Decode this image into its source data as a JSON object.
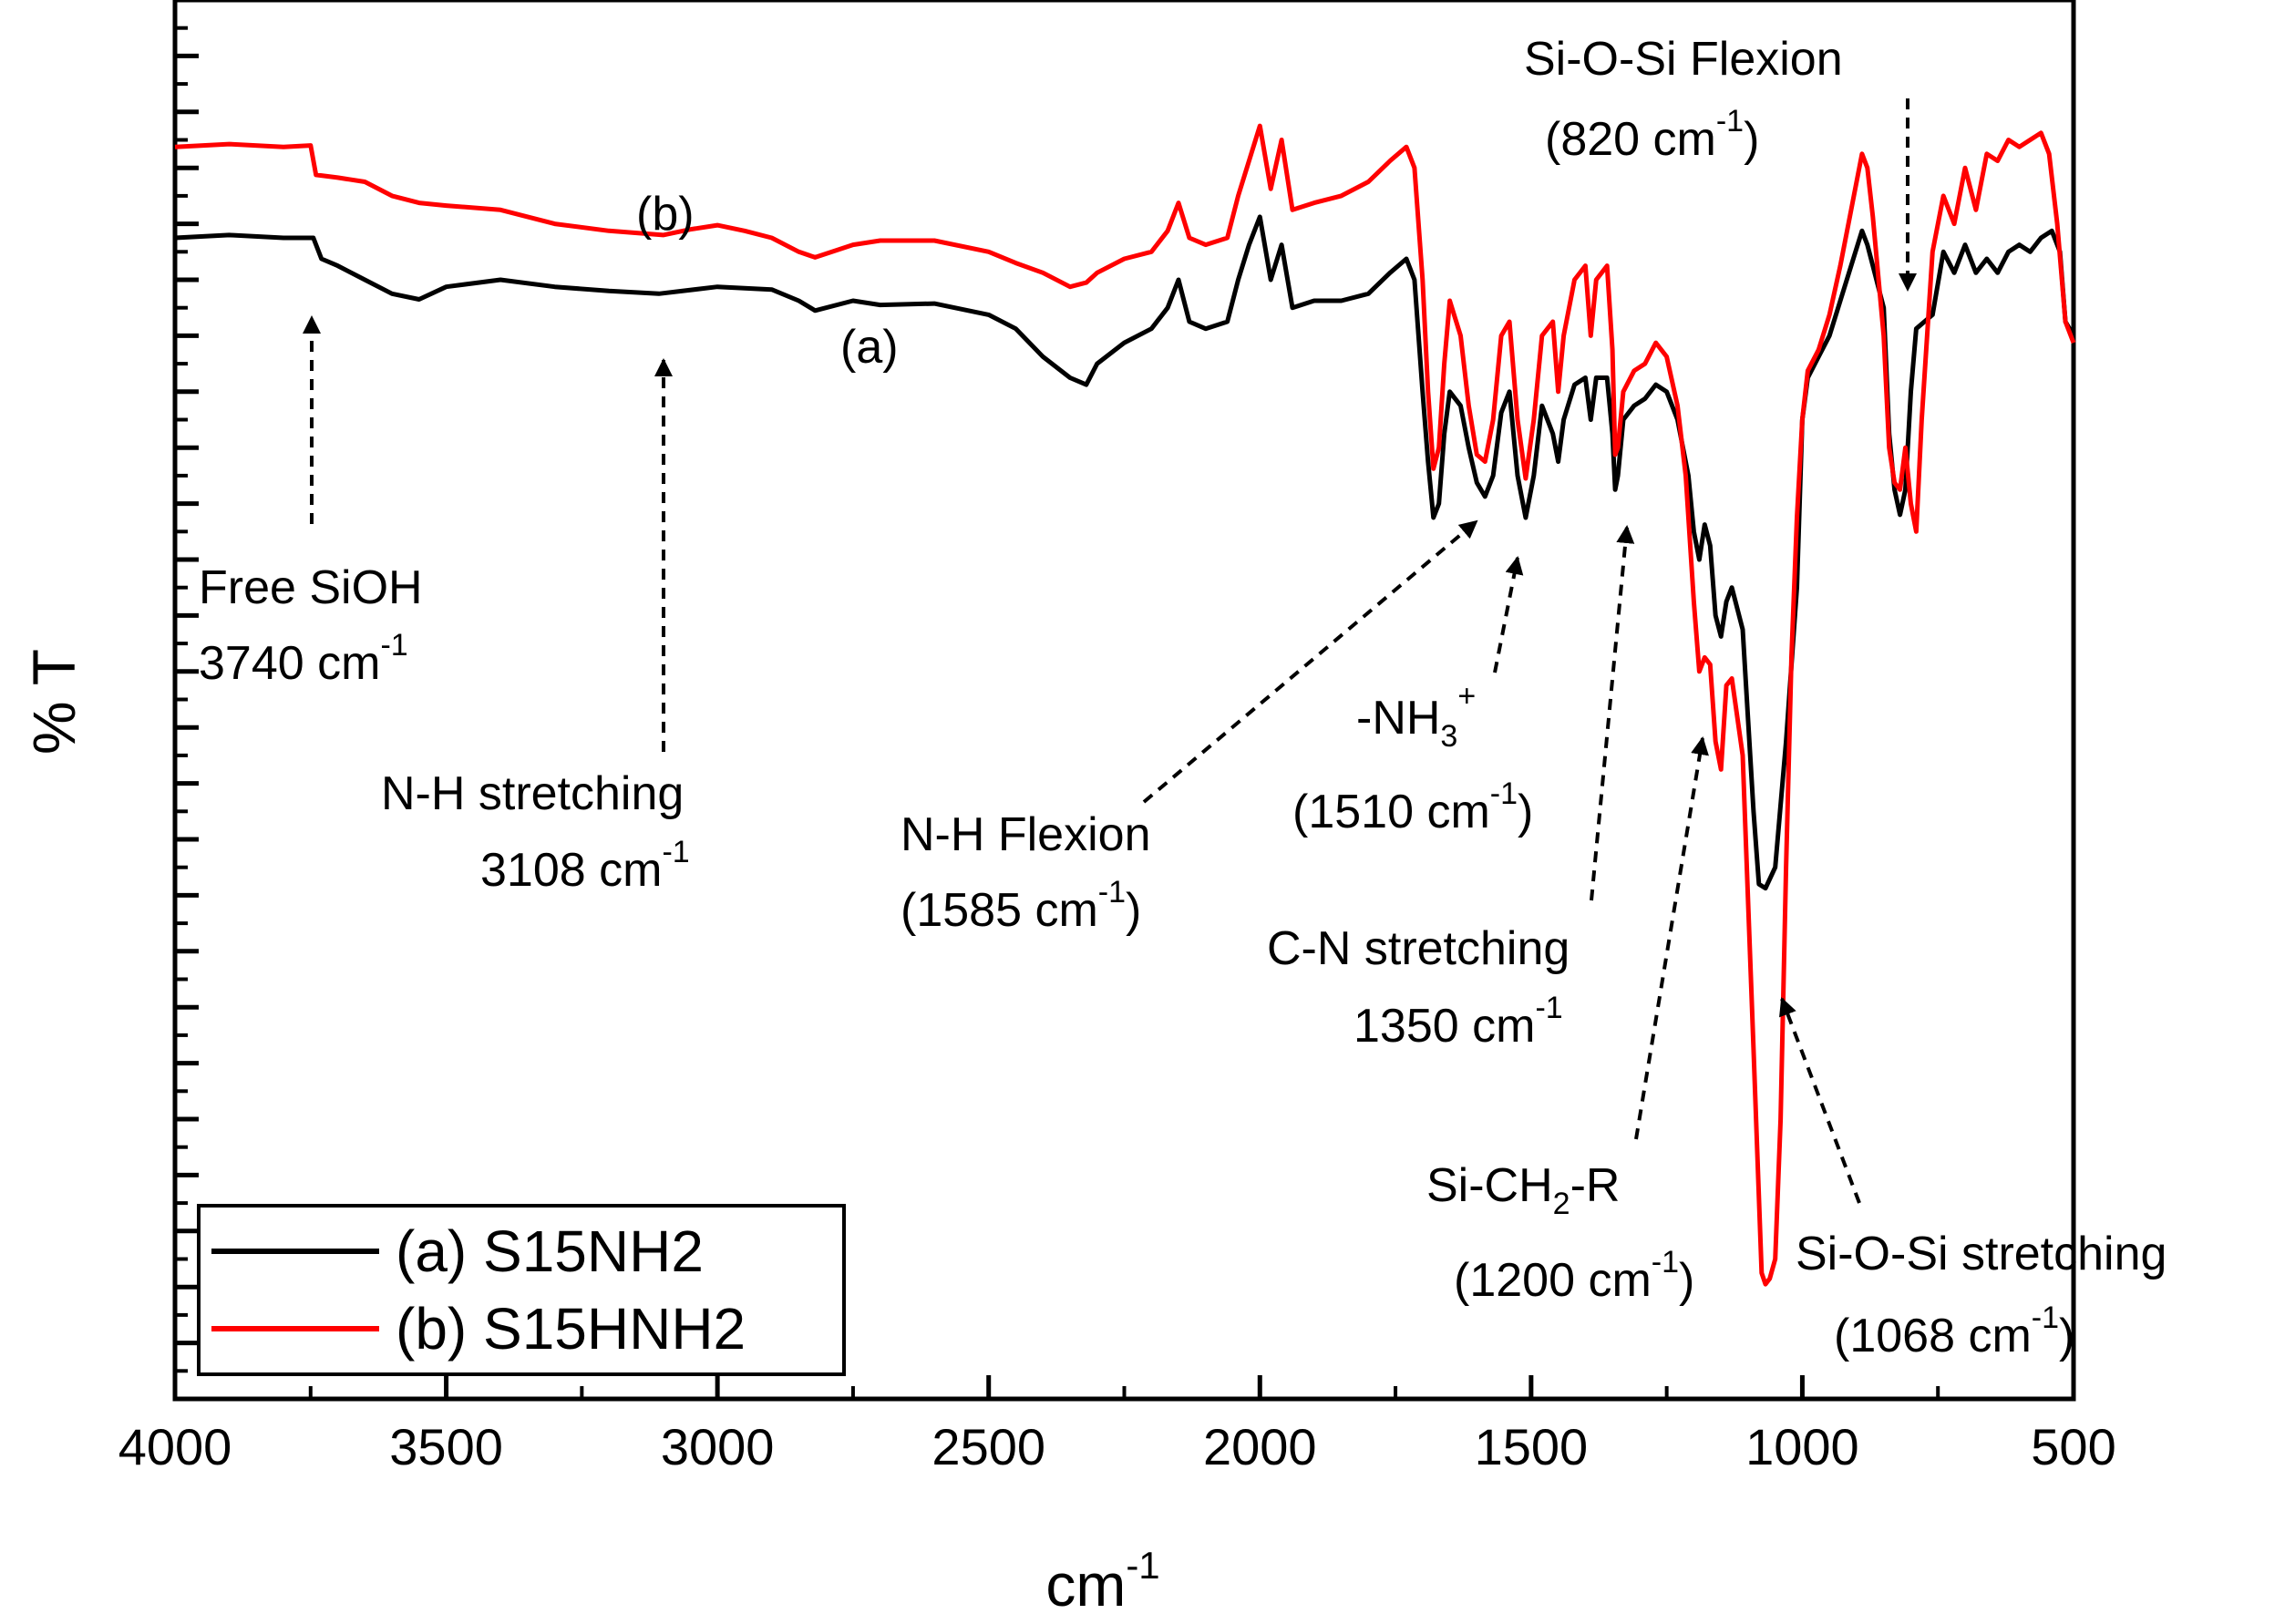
{
  "chart_data": {
    "type": "line",
    "title": "",
    "xlabel": "cm",
    "xlabel_sup": "-1",
    "ylabel": "% T",
    "xlim": [
      4000,
      500
    ],
    "ylim": [
      0,
      100
    ],
    "xticks": [
      "4000",
      "3500",
      "3000",
      "2500",
      "2000",
      "1500",
      "1000",
      "500"
    ],
    "xtick_values": [
      4000,
      3500,
      3000,
      2500,
      2000,
      1500,
      1000,
      500
    ],
    "series": [
      {
        "name": "(a) S15NH2",
        "curve_label": "(a)",
        "color": "#000000",
        "points": [
          [
            4000,
            83
          ],
          [
            3900,
            83.2
          ],
          [
            3800,
            83
          ],
          [
            3745,
            83
          ],
          [
            3730,
            81.5
          ],
          [
            3700,
            81
          ],
          [
            3650,
            80
          ],
          [
            3600,
            79
          ],
          [
            3550,
            78.6
          ],
          [
            3500,
            79.5
          ],
          [
            3400,
            80
          ],
          [
            3300,
            79.5
          ],
          [
            3200,
            79.2
          ],
          [
            3108,
            79
          ],
          [
            3000,
            79.5
          ],
          [
            2900,
            79.3
          ],
          [
            2850,
            78.5
          ],
          [
            2820,
            77.8
          ],
          [
            2750,
            78.5
          ],
          [
            2700,
            78.2
          ],
          [
            2600,
            78.3
          ],
          [
            2500,
            77.5
          ],
          [
            2450,
            76.5
          ],
          [
            2400,
            74.5
          ],
          [
            2350,
            73
          ],
          [
            2320,
            72.5
          ],
          [
            2300,
            74
          ],
          [
            2250,
            75.5
          ],
          [
            2200,
            76.5
          ],
          [
            2170,
            78
          ],
          [
            2150,
            80
          ],
          [
            2130,
            77
          ],
          [
            2100,
            76.5
          ],
          [
            2060,
            77
          ],
          [
            2040,
            80
          ],
          [
            2020,
            82.5
          ],
          [
            2000,
            84.5
          ],
          [
            1980,
            80
          ],
          [
            1960,
            82.5
          ],
          [
            1940,
            78
          ],
          [
            1900,
            78.5
          ],
          [
            1850,
            78.5
          ],
          [
            1800,
            79
          ],
          [
            1760,
            80.5
          ],
          [
            1730,
            81.5
          ],
          [
            1715,
            80
          ],
          [
            1700,
            72
          ],
          [
            1690,
            67
          ],
          [
            1680,
            63
          ],
          [
            1670,
            64
          ],
          [
            1660,
            69
          ],
          [
            1650,
            72
          ],
          [
            1630,
            71
          ],
          [
            1615,
            68
          ],
          [
            1600,
            65.5
          ],
          [
            1585,
            64.5
          ],
          [
            1570,
            66
          ],
          [
            1555,
            70.5
          ],
          [
            1540,
            72
          ],
          [
            1525,
            66
          ],
          [
            1510,
            63
          ],
          [
            1495,
            66
          ],
          [
            1480,
            71
          ],
          [
            1460,
            69
          ],
          [
            1450,
            67
          ],
          [
            1440,
            70
          ],
          [
            1420,
            72.5
          ],
          [
            1400,
            73
          ],
          [
            1390,
            70
          ],
          [
            1380,
            73
          ],
          [
            1360,
            73
          ],
          [
            1350,
            69
          ],
          [
            1345,
            65
          ],
          [
            1340,
            66
          ],
          [
            1330,
            70
          ],
          [
            1310,
            71
          ],
          [
            1290,
            71.5
          ],
          [
            1270,
            72.5
          ],
          [
            1250,
            72
          ],
          [
            1230,
            70
          ],
          [
            1210,
            66
          ],
          [
            1200,
            62
          ],
          [
            1190,
            60
          ],
          [
            1180,
            62.5
          ],
          [
            1170,
            61
          ],
          [
            1160,
            56
          ],
          [
            1150,
            54.5
          ],
          [
            1140,
            57
          ],
          [
            1130,
            58
          ],
          [
            1110,
            55
          ],
          [
            1090,
            42
          ],
          [
            1080,
            36.8
          ],
          [
            1068,
            36.5
          ],
          [
            1050,
            38
          ],
          [
            1030,
            47
          ],
          [
            1010,
            58
          ],
          [
            1000,
            70
          ],
          [
            990,
            73
          ],
          [
            970,
            74.5
          ],
          [
            950,
            76
          ],
          [
            930,
            78.5
          ],
          [
            910,
            81
          ],
          [
            890,
            83.5
          ],
          [
            880,
            82.5
          ],
          [
            870,
            81
          ],
          [
            850,
            78
          ],
          [
            840,
            69
          ],
          [
            830,
            65
          ],
          [
            820,
            63.2
          ],
          [
            810,
            65
          ],
          [
            800,
            72
          ],
          [
            790,
            76.5
          ],
          [
            760,
            77.5
          ],
          [
            740,
            82
          ],
          [
            720,
            80.5
          ],
          [
            700,
            82.5
          ],
          [
            680,
            80.5
          ],
          [
            660,
            81.5
          ],
          [
            640,
            80.5
          ],
          [
            620,
            82
          ],
          [
            600,
            82.5
          ],
          [
            580,
            82
          ],
          [
            560,
            83
          ],
          [
            540,
            83.5
          ],
          [
            525,
            82
          ],
          [
            515,
            77
          ],
          [
            500,
            76
          ]
        ]
      },
      {
        "name": "(b) S15HNH2",
        "curve_label": "(b)",
        "color": "#ff0000",
        "points": [
          [
            4000,
            89.5
          ],
          [
            3900,
            89.7
          ],
          [
            3800,
            89.5
          ],
          [
            3750,
            89.6
          ],
          [
            3740,
            87.5
          ],
          [
            3700,
            87.3
          ],
          [
            3650,
            87
          ],
          [
            3600,
            86
          ],
          [
            3550,
            85.5
          ],
          [
            3500,
            85.3
          ],
          [
            3400,
            85
          ],
          [
            3300,
            84
          ],
          [
            3200,
            83.5
          ],
          [
            3100,
            83.2
          ],
          [
            3050,
            83.6
          ],
          [
            3000,
            83.9
          ],
          [
            2950,
            83.5
          ],
          [
            2900,
            83
          ],
          [
            2850,
            82
          ],
          [
            2820,
            81.6
          ],
          [
            2750,
            82.5
          ],
          [
            2700,
            82.8
          ],
          [
            2600,
            82.8
          ],
          [
            2500,
            82
          ],
          [
            2450,
            81.2
          ],
          [
            2400,
            80.5
          ],
          [
            2350,
            79.5
          ],
          [
            2320,
            79.8
          ],
          [
            2300,
            80.5
          ],
          [
            2250,
            81.5
          ],
          [
            2200,
            82
          ],
          [
            2170,
            83.5
          ],
          [
            2150,
            85.5
          ],
          [
            2130,
            83
          ],
          [
            2100,
            82.5
          ],
          [
            2060,
            83
          ],
          [
            2040,
            86
          ],
          [
            2020,
            88.5
          ],
          [
            2000,
            91
          ],
          [
            1980,
            86.5
          ],
          [
            1960,
            90
          ],
          [
            1940,
            85
          ],
          [
            1900,
            85.5
          ],
          [
            1850,
            86
          ],
          [
            1800,
            87
          ],
          [
            1760,
            88.5
          ],
          [
            1730,
            89.5
          ],
          [
            1715,
            88
          ],
          [
            1700,
            80
          ],
          [
            1690,
            72
          ],
          [
            1680,
            66.5
          ],
          [
            1670,
            68
          ],
          [
            1660,
            74
          ],
          [
            1650,
            78.5
          ],
          [
            1630,
            76
          ],
          [
            1615,
            71
          ],
          [
            1600,
            67.5
          ],
          [
            1585,
            67
          ],
          [
            1570,
            70
          ],
          [
            1555,
            76
          ],
          [
            1540,
            77
          ],
          [
            1525,
            70
          ],
          [
            1510,
            65.8
          ],
          [
            1495,
            70
          ],
          [
            1480,
            76
          ],
          [
            1460,
            77
          ],
          [
            1450,
            72
          ],
          [
            1440,
            76
          ],
          [
            1420,
            80
          ],
          [
            1400,
            81
          ],
          [
            1390,
            76
          ],
          [
            1380,
            80
          ],
          [
            1360,
            81
          ],
          [
            1350,
            75
          ],
          [
            1345,
            67.5
          ],
          [
            1340,
            68
          ],
          [
            1330,
            72
          ],
          [
            1310,
            73.5
          ],
          [
            1290,
            74
          ],
          [
            1270,
            75.5
          ],
          [
            1250,
            74.5
          ],
          [
            1230,
            71
          ],
          [
            1215,
            66
          ],
          [
            1200,
            57
          ],
          [
            1190,
            52
          ],
          [
            1180,
            53
          ],
          [
            1170,
            52.5
          ],
          [
            1160,
            47
          ],
          [
            1150,
            45
          ],
          [
            1140,
            51
          ],
          [
            1130,
            51.5
          ],
          [
            1110,
            46
          ],
          [
            1090,
            25
          ],
          [
            1075,
            9
          ],
          [
            1068,
            8.2
          ],
          [
            1060,
            8.6
          ],
          [
            1050,
            10
          ],
          [
            1040,
            20
          ],
          [
            1030,
            38
          ],
          [
            1020,
            53
          ],
          [
            1010,
            63
          ],
          [
            1000,
            70
          ],
          [
            990,
            73.5
          ],
          [
            970,
            75
          ],
          [
            950,
            77.5
          ],
          [
            930,
            81
          ],
          [
            910,
            85
          ],
          [
            890,
            89
          ],
          [
            880,
            88
          ],
          [
            870,
            84.5
          ],
          [
            850,
            76
          ],
          [
            840,
            68
          ],
          [
            830,
            65.5
          ],
          [
            820,
            65
          ],
          [
            810,
            68
          ],
          [
            800,
            64
          ],
          [
            790,
            62
          ],
          [
            780,
            70
          ],
          [
            760,
            82
          ],
          [
            740,
            86
          ],
          [
            720,
            84
          ],
          [
            700,
            88
          ],
          [
            680,
            85
          ],
          [
            660,
            89
          ],
          [
            640,
            88.5
          ],
          [
            620,
            90
          ],
          [
            600,
            89.5
          ],
          [
            580,
            90
          ],
          [
            560,
            90.5
          ],
          [
            545,
            89
          ],
          [
            530,
            84
          ],
          [
            515,
            77
          ],
          [
            500,
            75.5
          ]
        ]
      }
    ],
    "annotations": [
      {
        "id": "free-sioh",
        "lines": [
          "Free SiOH",
          "3740 cm"
        ],
        "sup": "-1"
      },
      {
        "id": "nh-stretching",
        "lines": [
          "N-H stretching",
          "3108 cm"
        ],
        "sup": "-1"
      },
      {
        "id": "nh-flexion",
        "lines": [
          "N-H Flexion",
          "(1585 cm"
        ],
        "sup": "-1",
        "suffix": ")"
      },
      {
        "id": "nh3",
        "lines": [
          "-NH",
          "(1510 cm"
        ],
        "sub": "3",
        "sup1": "+",
        "sup": "-1",
        "suffix": ")"
      },
      {
        "id": "cn-stretching",
        "lines": [
          "C-N stretching",
          "1350 cm"
        ],
        "sup": "-1"
      },
      {
        "id": "sich2r",
        "lines": [
          "Si-CH",
          "-R",
          "(1200 cm"
        ],
        "sub": "2",
        "sup": "-1",
        "suffix": ")"
      },
      {
        "id": "siosi-stretching",
        "lines": [
          "Si-O-Si stretching",
          "(1068 cm"
        ],
        "sup": "-1",
        "suffix": ")"
      },
      {
        "id": "siosi-flexion",
        "lines": [
          "Si-O-Si Flexion",
          "(820 cm"
        ],
        "sup": "-1",
        "suffix": ")"
      }
    ],
    "legend": {
      "placement": "bottom-left",
      "entries": [
        "(a) S15NH2",
        "(b) S15HNH2"
      ]
    }
  }
}
